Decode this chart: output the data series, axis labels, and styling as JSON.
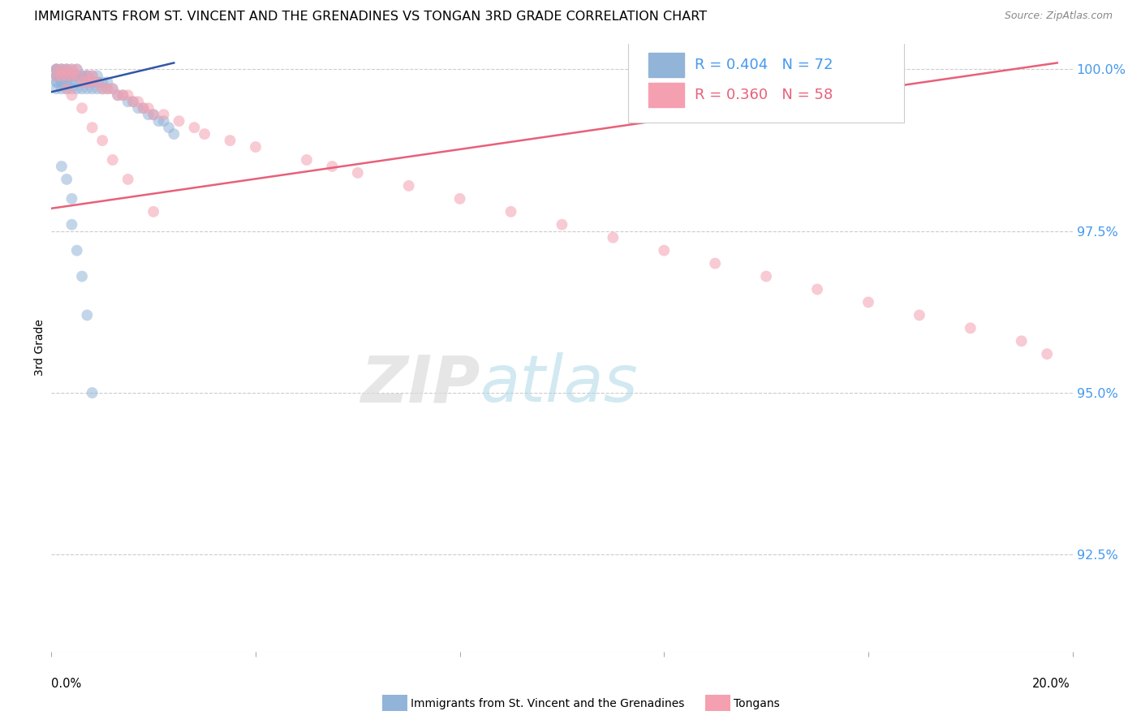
{
  "title": "IMMIGRANTS FROM ST. VINCENT AND THE GRENADINES VS TONGAN 3RD GRADE CORRELATION CHART",
  "source_text": "Source: ZipAtlas.com",
  "ylabel": "3rd Grade",
  "ytick_values": [
    1.0,
    0.975,
    0.95,
    0.925
  ],
  "ytick_labels": [
    "100.0%",
    "97.5%",
    "95.0%",
    "92.5%"
  ],
  "xlim": [
    0.0,
    0.2
  ],
  "ylim": [
    0.91,
    1.004
  ],
  "legend_blue_R": "R = 0.404",
  "legend_blue_N": "N = 72",
  "legend_pink_R": "R = 0.360",
  "legend_pink_N": "N = 58",
  "legend_blue_label": "Immigrants from St. Vincent and the Grenadines",
  "legend_pink_label": "Tongans",
  "blue_color": "#92B4D8",
  "pink_color": "#F4A0B0",
  "blue_line_color": "#3355AA",
  "pink_line_color": "#E8607A",
  "blue_scatter_x": [
    0.001,
    0.001,
    0.001,
    0.001,
    0.001,
    0.001,
    0.001,
    0.001,
    0.001,
    0.002,
    0.002,
    0.002,
    0.002,
    0.002,
    0.002,
    0.002,
    0.003,
    0.003,
    0.003,
    0.003,
    0.003,
    0.003,
    0.003,
    0.004,
    0.004,
    0.004,
    0.004,
    0.004,
    0.005,
    0.005,
    0.005,
    0.005,
    0.005,
    0.006,
    0.006,
    0.006,
    0.006,
    0.007,
    0.007,
    0.007,
    0.007,
    0.008,
    0.008,
    0.008,
    0.009,
    0.009,
    0.009,
    0.01,
    0.01,
    0.011,
    0.011,
    0.012,
    0.013,
    0.014,
    0.015,
    0.016,
    0.017,
    0.018,
    0.019,
    0.02,
    0.021,
    0.022,
    0.023,
    0.024,
    0.002,
    0.003,
    0.004,
    0.004,
    0.005,
    0.006,
    0.007,
    0.008
  ],
  "blue_scatter_y": [
    1.0,
    1.0,
    1.0,
    0.999,
    0.999,
    0.999,
    0.998,
    0.998,
    0.997,
    1.0,
    1.0,
    0.999,
    0.999,
    0.998,
    0.998,
    0.997,
    1.0,
    1.0,
    0.999,
    0.999,
    0.998,
    0.998,
    0.997,
    1.0,
    0.999,
    0.999,
    0.998,
    0.997,
    1.0,
    0.999,
    0.999,
    0.998,
    0.997,
    0.999,
    0.999,
    0.998,
    0.997,
    0.999,
    0.999,
    0.998,
    0.997,
    0.999,
    0.998,
    0.997,
    0.999,
    0.998,
    0.997,
    0.998,
    0.997,
    0.998,
    0.997,
    0.997,
    0.996,
    0.996,
    0.995,
    0.995,
    0.994,
    0.994,
    0.993,
    0.993,
    0.992,
    0.992,
    0.991,
    0.99,
    0.985,
    0.983,
    0.98,
    0.976,
    0.972,
    0.968,
    0.962,
    0.95
  ],
  "pink_scatter_x": [
    0.001,
    0.001,
    0.002,
    0.002,
    0.003,
    0.003,
    0.004,
    0.004,
    0.005,
    0.005,
    0.006,
    0.007,
    0.007,
    0.008,
    0.008,
    0.009,
    0.01,
    0.011,
    0.012,
    0.013,
    0.014,
    0.015,
    0.016,
    0.017,
    0.018,
    0.019,
    0.02,
    0.022,
    0.025,
    0.028,
    0.03,
    0.035,
    0.04,
    0.05,
    0.055,
    0.06,
    0.07,
    0.08,
    0.09,
    0.1,
    0.11,
    0.12,
    0.13,
    0.14,
    0.15,
    0.16,
    0.17,
    0.18,
    0.19,
    0.195,
    0.003,
    0.004,
    0.006,
    0.008,
    0.01,
    0.012,
    0.015,
    0.02
  ],
  "pink_scatter_y": [
    1.0,
    0.999,
    1.0,
    0.999,
    1.0,
    0.999,
    1.0,
    0.999,
    1.0,
    0.999,
    0.998,
    0.999,
    0.998,
    0.999,
    0.998,
    0.998,
    0.997,
    0.997,
    0.997,
    0.996,
    0.996,
    0.996,
    0.995,
    0.995,
    0.994,
    0.994,
    0.993,
    0.993,
    0.992,
    0.991,
    0.99,
    0.989,
    0.988,
    0.986,
    0.985,
    0.984,
    0.982,
    0.98,
    0.978,
    0.976,
    0.974,
    0.972,
    0.97,
    0.968,
    0.966,
    0.964,
    0.962,
    0.96,
    0.958,
    0.956,
    0.997,
    0.996,
    0.994,
    0.991,
    0.989,
    0.986,
    0.983,
    0.978
  ],
  "blue_trend_x": [
    0.0,
    0.024
  ],
  "blue_trend_y": [
    0.9965,
    1.001
  ],
  "pink_trend_x": [
    0.0,
    0.197
  ],
  "pink_trend_y": [
    0.9785,
    1.001
  ],
  "watermark_zip": "ZIP",
  "watermark_atlas": "atlas",
  "background_color": "#FFFFFF",
  "grid_color": "#CCCCCC",
  "ytick_color": "#4499EE",
  "title_fontsize": 11.5,
  "source_fontsize": 9,
  "scatter_size": 100,
  "scatter_alpha": 0.55
}
